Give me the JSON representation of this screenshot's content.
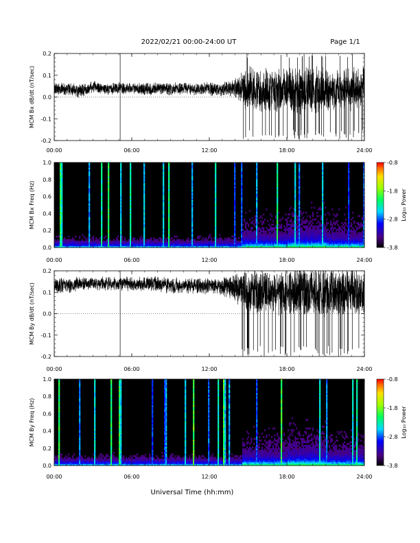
{
  "header": {
    "title": "2022/02/21  00:00-24:00 UT",
    "page": "Page 1/1"
  },
  "footer": {
    "xlabel": "Universal Time (hh:mm)"
  },
  "colorbar": {
    "label": "Log₁₀ Power",
    "ticks": [
      "-0.8",
      "-1.8",
      "-2.8",
      "-3.8"
    ],
    "range": [
      -3.8,
      -0.8
    ]
  },
  "chart_data": [
    {
      "type": "line",
      "ylabel": "MCM Bx dB/dt (nT/sec)",
      "ylim": [
        -0.2,
        0.2
      ],
      "yticks": [
        "0.2",
        "0.1",
        "0.0",
        "-0.1",
        "-0.2"
      ],
      "xlim": [
        0,
        24
      ],
      "xticks": [
        "00:00",
        "06:00",
        "12:00",
        "18:00",
        "24:00"
      ],
      "series": [
        {
          "x": [
            0,
            1,
            2,
            3,
            4,
            5,
            6,
            7,
            8,
            9,
            10,
            11,
            12,
            13,
            14,
            15,
            16,
            17,
            18,
            19,
            20,
            21,
            22,
            23,
            24
          ],
          "y": [
            0.04,
            0.035,
            0.03,
            0.045,
            0.035,
            0.04,
            0.04,
            0.035,
            0.04,
            0.035,
            0.04,
            0.035,
            0.04,
            0.035,
            0.04,
            0.035,
            0.03,
            0.03,
            0.035,
            0.03,
            0.03,
            0.035,
            0.03,
            0.04,
            0.04
          ],
          "amplitude": [
            0.03,
            0.03,
            0.035,
            0.03,
            0.03,
            0.03,
            0.03,
            0.03,
            0.03,
            0.035,
            0.03,
            0.03,
            0.035,
            0.035,
            0.05,
            0.11,
            0.12,
            0.11,
            0.11,
            0.12,
            0.12,
            0.11,
            0.1,
            0.11,
            0.11
          ]
        }
      ]
    },
    {
      "type": "heatmap",
      "ylabel": "MCM Bx Freq (Hz)",
      "ylim": [
        0.0,
        1.0
      ],
      "yticks": [
        "1.0",
        "0.8",
        "0.6",
        "0.4",
        "0.2",
        "0.0"
      ],
      "xlim": [
        0,
        24
      ],
      "xticks": [
        "00:00",
        "06:00",
        "12:00",
        "18:00",
        "24:00"
      ],
      "zlim": [
        -3.8,
        -0.8
      ]
    },
    {
      "type": "line",
      "ylabel": "MCM By dB/dt (nT/sec)",
      "ylim": [
        -0.2,
        0.2
      ],
      "yticks": [
        "0.2",
        "0.1",
        "0.0",
        "-0.1",
        "-0.2"
      ],
      "xlim": [
        0,
        24
      ],
      "xticks": [
        "00:00",
        "06:00",
        "12:00",
        "18:00",
        "24:00"
      ],
      "series": [
        {
          "x": [
            0,
            1,
            2,
            3,
            4,
            5,
            6,
            7,
            8,
            9,
            10,
            11,
            12,
            13,
            14,
            15,
            16,
            17,
            18,
            19,
            20,
            21,
            22,
            23,
            24
          ],
          "y": [
            0.13,
            0.13,
            0.14,
            0.14,
            0.14,
            0.14,
            0.14,
            0.14,
            0.14,
            0.13,
            0.13,
            0.13,
            0.13,
            0.13,
            0.12,
            0.1,
            0.1,
            0.1,
            0.1,
            0.1,
            0.1,
            0.1,
            0.1,
            0.1,
            0.1
          ],
          "amplitude": [
            0.04,
            0.04,
            0.035,
            0.035,
            0.035,
            0.035,
            0.035,
            0.035,
            0.04,
            0.04,
            0.04,
            0.04,
            0.045,
            0.05,
            0.07,
            0.12,
            0.12,
            0.11,
            0.11,
            0.13,
            0.13,
            0.12,
            0.12,
            0.12,
            0.12
          ]
        }
      ]
    },
    {
      "type": "heatmap",
      "ylabel": "MCM By Freq (Hz)",
      "ylim": [
        0.0,
        1.0
      ],
      "yticks": [
        "1.0",
        "0.8",
        "0.6",
        "0.4",
        "0.2",
        "0.0"
      ],
      "xlim": [
        0,
        24
      ],
      "xticks": [
        "00:00",
        "06:00",
        "12:00",
        "18:00",
        "24:00"
      ],
      "zlim": [
        -3.8,
        -0.8
      ]
    }
  ]
}
